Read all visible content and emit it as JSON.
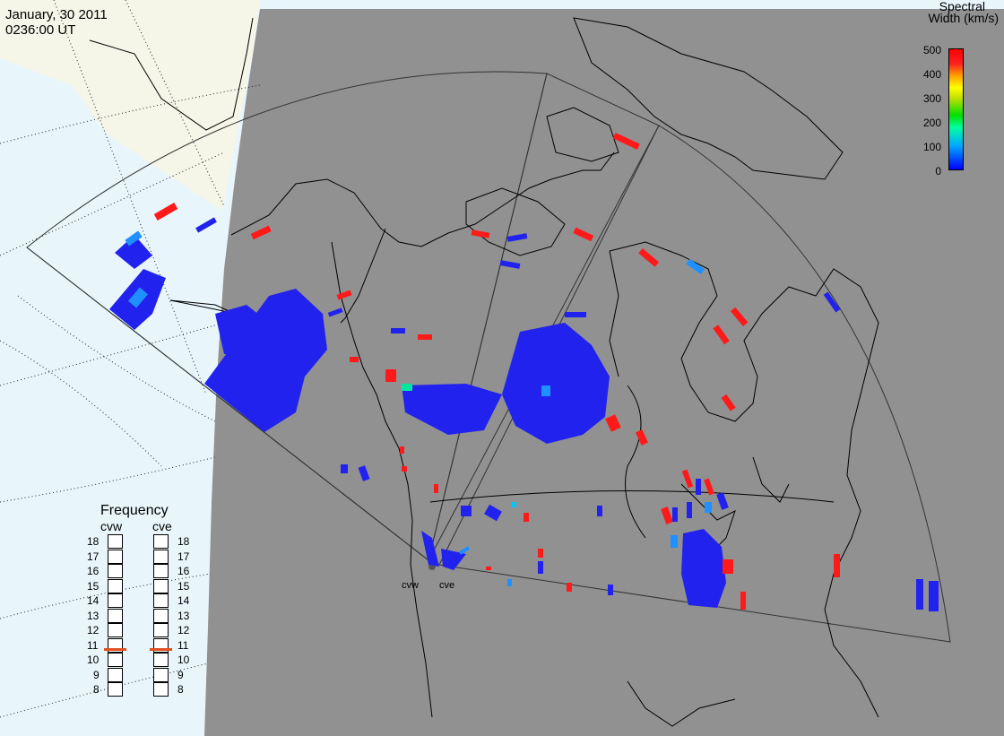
{
  "header": {
    "date": "January, 30 2011",
    "time": "0236:00 UT"
  },
  "colorbar": {
    "title_line1": "Spectral",
    "title_line2": "Width (km/s)",
    "ticks": [
      "500",
      "400",
      "300",
      "200",
      "100",
      "0"
    ],
    "min": 0,
    "max": 500
  },
  "frequency_panel": {
    "title": "Frequency",
    "left_radar": "cvw",
    "right_radar": "cve",
    "scale": [
      "18",
      "17",
      "16",
      "15",
      "14",
      "13",
      "12",
      "11",
      "10",
      "9",
      "8"
    ],
    "cvw_value": 10.8,
    "cve_value": 10.8,
    "marker_color": "#e05020"
  },
  "radars": {
    "west_label": "cvw",
    "east_label": "cve"
  },
  "colors": {
    "night_shade": "#919191",
    "ocean": "#e8f6fc",
    "land_day": "#f5f5e8",
    "low_width": "#2222ee",
    "high_width": "#ff1a1a",
    "mid_width": "#1e90ff"
  }
}
